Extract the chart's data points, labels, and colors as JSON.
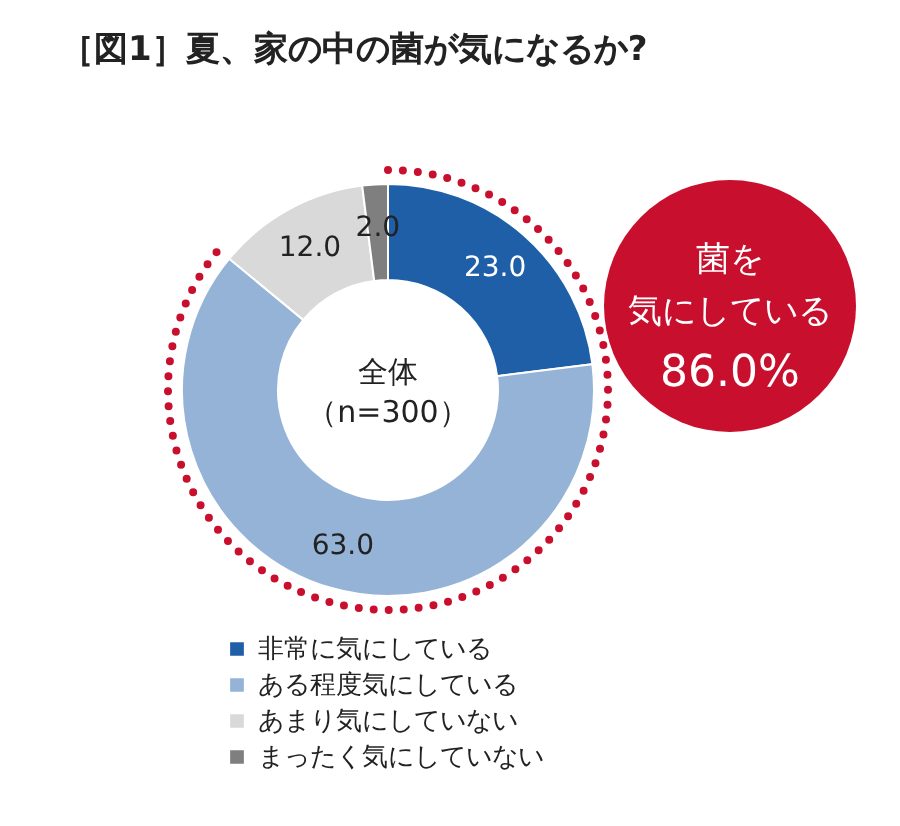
{
  "chart_data": {
    "type": "donut",
    "title": "［図1］夏、家の中の菌が気になるか?",
    "categories": [
      "非常に気にしている",
      "ある程度気にしている",
      "あまり気にしていない",
      "まったく気にしていない"
    ],
    "values": [
      23.0,
      63.0,
      12.0,
      2.0
    ],
    "colors": [
      "#1f5fa8",
      "#95b3d7",
      "#d9d9d9",
      "#7f7f7f"
    ],
    "value_labels": [
      "23.0",
      "63.0",
      "12.0",
      "2.0"
    ],
    "legend": "bottom",
    "annotations": [
      "全体",
      "（n=300）",
      "菌を",
      "気にしている",
      "86.0%"
    ]
  }
}
